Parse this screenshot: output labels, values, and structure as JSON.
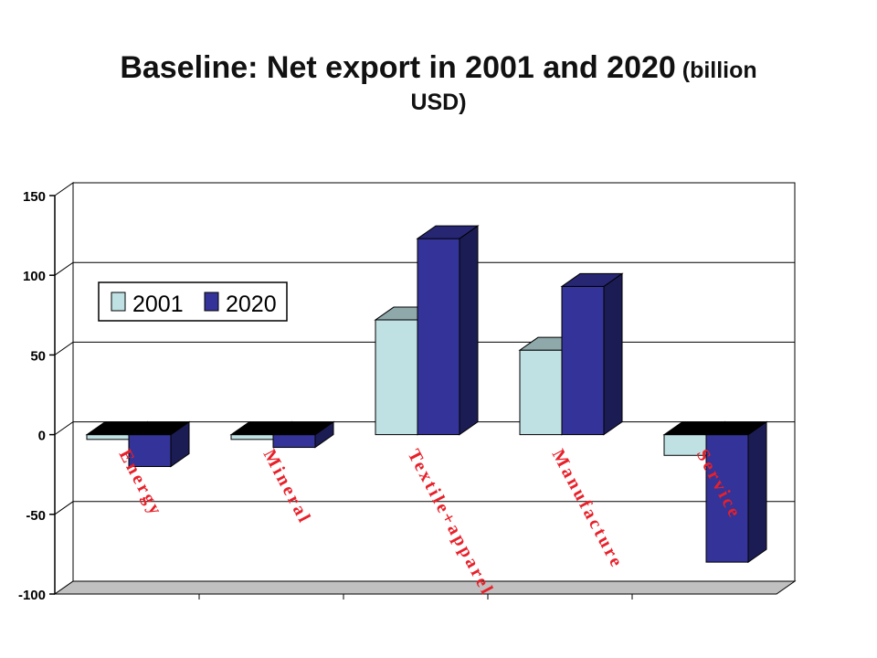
{
  "title": {
    "main": "Baseline: Net export in 2001 and 2020",
    "unit_open": " (billion",
    "unit_close": "USD)"
  },
  "chart_data": {
    "type": "bar",
    "categories": [
      "Energy",
      "Mineral",
      "Textile+apparel",
      "Manufacture",
      "Service"
    ],
    "series": [
      {
        "name": "2001",
        "values": [
          -3,
          -3,
          72,
          53,
          -13
        ],
        "color": "#bfe1e4"
      },
      {
        "name": "2020",
        "values": [
          -20,
          -8,
          123,
          93,
          -80
        ],
        "color": "#333399"
      }
    ],
    "ylim": [
      -100,
      150
    ],
    "yticks": [
      -100,
      -50,
      0,
      50,
      100,
      150
    ],
    "grid": true,
    "legend_position": "upper-left",
    "category_label_color": "#e8202a",
    "three_d": true
  }
}
